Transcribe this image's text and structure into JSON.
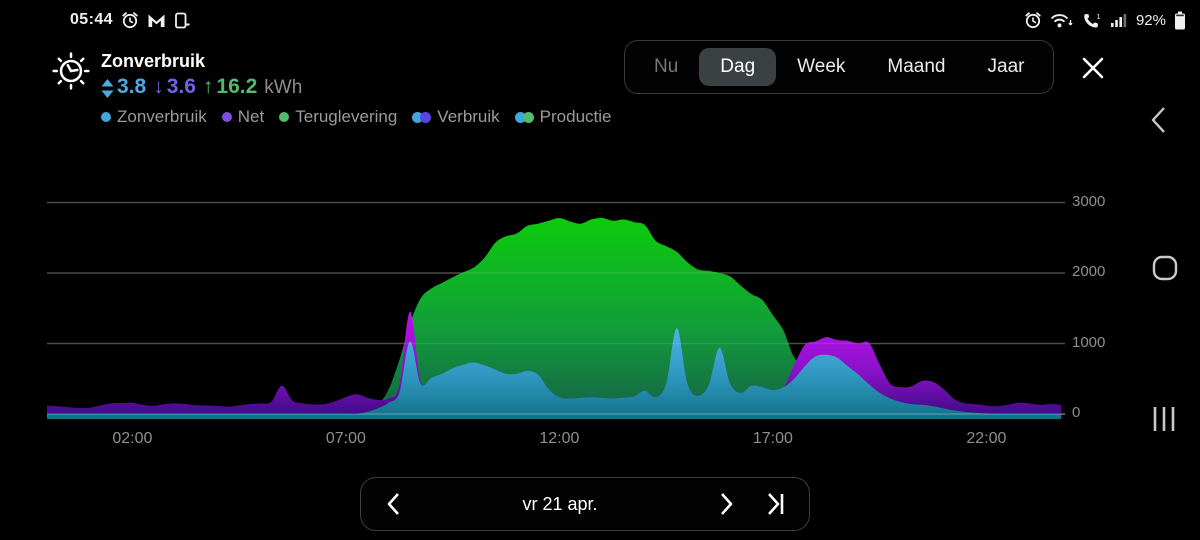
{
  "status_bar": {
    "time": "05:44",
    "battery": "92%",
    "left_icons": [
      "alarm-icon",
      "gmail-icon",
      "device-icon"
    ],
    "right_icons": [
      "alarm-icon",
      "wifi-icon",
      "wifi-calling-icon",
      "signal-strength-icon",
      "battery-icon"
    ]
  },
  "header": {
    "title": "Zonverbruik",
    "unit": "kWh",
    "metrics": [
      {
        "name": "zonverbruik",
        "icon": "updown-arrows-icon",
        "value": "3.8",
        "color": "#4FA9E0"
      },
      {
        "name": "net",
        "icon": "down-arrow-icon",
        "arrow": "↓",
        "value": "3.6",
        "color": "#7263E6"
      },
      {
        "name": "teruglevering",
        "icon": "up-arrow-icon",
        "arrow": "↑",
        "value": "16.2",
        "color": "#55B96E"
      }
    ]
  },
  "legend": [
    {
      "label": "Zonverbruik",
      "type": "single",
      "colors": [
        "#42A5DC"
      ]
    },
    {
      "label": "Net",
      "type": "single",
      "colors": [
        "#7D4FE0"
      ]
    },
    {
      "label": "Teruglevering",
      "type": "single",
      "colors": [
        "#55BB6C"
      ]
    },
    {
      "label": "Verbruik",
      "type": "double",
      "colors": [
        "#42A5DC",
        "#5A43E6"
      ]
    },
    {
      "label": "Productie",
      "type": "double",
      "colors": [
        "#42A5DC",
        "#55BB6C"
      ]
    }
  ],
  "range_selector": {
    "options": [
      "Nu",
      "Dag",
      "Week",
      "Maand",
      "Jaar"
    ],
    "selected": "Dag",
    "muted": "Nu"
  },
  "android_nav": [
    "back",
    "home",
    "recents"
  ],
  "date_nav": {
    "label": "vr 21 apr."
  },
  "chart_data": {
    "type": "area",
    "title": "Zonverbruik dag",
    "x_start_hour": 0,
    "step_hours": 0.25,
    "x_ticks": [
      {
        "label": "02:00",
        "hour": 2
      },
      {
        "label": "07:00",
        "hour": 7
      },
      {
        "label": "12:00",
        "hour": 12
      },
      {
        "label": "17:00",
        "hour": 17
      },
      {
        "label": "22:00",
        "hour": 22
      }
    ],
    "y_ticks": [
      0,
      1000,
      2000,
      3000
    ],
    "ylim": [
      0,
      3000
    ],
    "grid": true,
    "legend_position": "top-left",
    "series": [
      {
        "name": "Zonverbruik",
        "role": "base",
        "color_stops": [
          "#4FB4E8",
          "#2E96BE",
          "#117187"
        ],
        "values": [
          0,
          0,
          0,
          0,
          0,
          0,
          0,
          0,
          0,
          0,
          0,
          0,
          0,
          0,
          0,
          0,
          0,
          0,
          0,
          0,
          0,
          0,
          0,
          0,
          0,
          0,
          0,
          0,
          0,
          0,
          30,
          80,
          160,
          300,
          1030,
          430,
          510,
          570,
          650,
          700,
          730,
          690,
          630,
          570,
          570,
          610,
          560,
          350,
          240,
          220,
          230,
          240,
          230,
          220,
          235,
          250,
          330,
          240,
          430,
          1220,
          430,
          260,
          420,
          940,
          430,
          300,
          400,
          380,
          340,
          380,
          500,
          680,
          820,
          840,
          800,
          680,
          560,
          420,
          300,
          220,
          170,
          140,
          130,
          110,
          80,
          50,
          30,
          15,
          5,
          0,
          0,
          0,
          0,
          0,
          0,
          0
        ]
      },
      {
        "name": "Teruglevering",
        "role": "stacked-on-base",
        "color_stops": [
          "#0CCB0C",
          "#129D3A",
          "#156048"
        ],
        "values": [
          0,
          0,
          0,
          0,
          0,
          0,
          0,
          0,
          0,
          0,
          0,
          0,
          0,
          0,
          0,
          0,
          0,
          0,
          0,
          0,
          0,
          0,
          0,
          0,
          0,
          0,
          0,
          0,
          0,
          0,
          0,
          40,
          190,
          460,
          250,
          1210,
          1270,
          1290,
          1290,
          1310,
          1350,
          1530,
          1800,
          1950,
          1990,
          2060,
          2140,
          2390,
          2540,
          2510,
          2470,
          2520,
          2550,
          2520,
          2525,
          2470,
          2350,
          2220,
          1950,
          1080,
          1720,
          1790,
          1610,
          1060,
          1520,
          1520,
          1300,
          1240,
          1060,
          800,
          300,
          20,
          0,
          0,
          0,
          0,
          0,
          0,
          0,
          0,
          0,
          0,
          0,
          0,
          0,
          0,
          0,
          0,
          0,
          0,
          0,
          0,
          0,
          0,
          0,
          0
        ]
      },
      {
        "name": "Net",
        "role": "stacked-on-base",
        "color_stops": [
          "#BE10EF",
          "#8A12C9",
          "#390A80"
        ],
        "values": [
          120,
          110,
          95,
          85,
          90,
          120,
          150,
          155,
          160,
          130,
          115,
          140,
          150,
          140,
          125,
          120,
          115,
          105,
          125,
          140,
          150,
          170,
          400,
          190,
          150,
          135,
          140,
          180,
          240,
          280,
          200,
          120,
          60,
          100,
          420,
          40,
          0,
          0,
          0,
          0,
          0,
          0,
          0,
          0,
          0,
          0,
          0,
          0,
          0,
          0,
          0,
          0,
          0,
          0,
          0,
          0,
          0,
          0,
          0,
          0,
          0,
          0,
          0,
          0,
          0,
          0,
          0,
          0,
          0,
          0,
          200,
          300,
          210,
          250,
          250,
          360,
          440,
          590,
          400,
          210,
          210,
          255,
          340,
          345,
          270,
          160,
          120,
          125,
          115,
          110,
          130,
          160,
          150,
          130,
          140,
          130
        ]
      }
    ]
  }
}
